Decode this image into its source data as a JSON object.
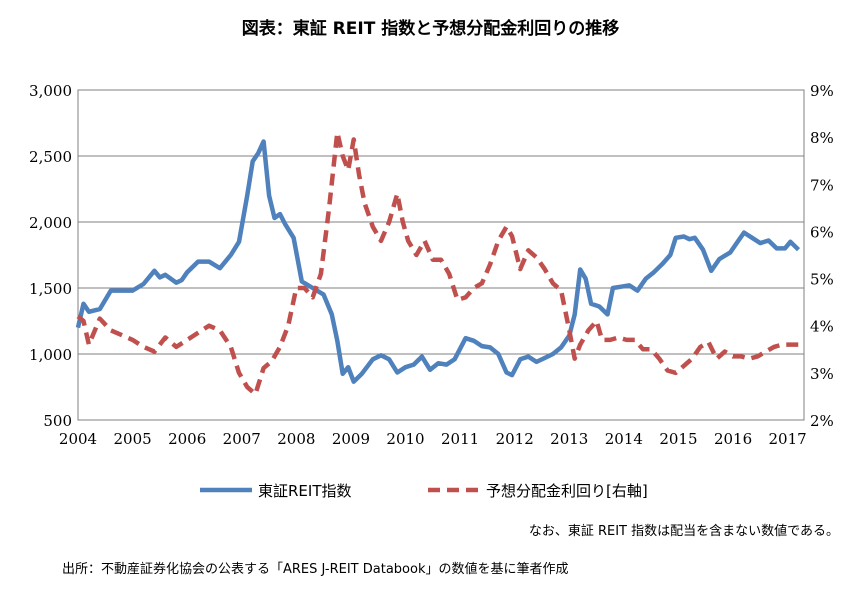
{
  "colors": {
    "index": "#4F81BD",
    "yield": "#C0504D",
    "grid": "#808080"
  },
  "notes": {
    "footnote": "なお、東証 REIT 指数は配当を含まない数値である。",
    "source": "出所：不動産証券化協会の公表する「ARES J-REIT Databook」の数値を基に筆者作成"
  },
  "chart_data": {
    "type": "line",
    "title": "図表：東証 REIT 指数と予想分配金利回りの推移",
    "x_ticks": [
      "2004",
      "2005",
      "2006",
      "2007",
      "2008",
      "2009",
      "2010",
      "2011",
      "2012",
      "2013",
      "2014",
      "2015",
      "2016",
      "2017"
    ],
    "y_left": {
      "min": 500,
      "max": 3000,
      "ticks": [
        "500",
        "1,000",
        "1,500",
        "2,000",
        "2,500",
        "3,000"
      ],
      "tick_values": [
        500,
        1000,
        1500,
        2000,
        2500,
        3000
      ]
    },
    "y_right": {
      "min": 2,
      "max": 9,
      "ticks": [
        "2%",
        "3%",
        "4%",
        "5%",
        "6%",
        "7%",
        "8%",
        "9%"
      ],
      "tick_values": [
        2,
        3,
        4,
        5,
        6,
        7,
        8,
        9
      ]
    },
    "grid": "horizontal",
    "legend_position": "bottom",
    "series": [
      {
        "name": "東証REIT指数",
        "axis": "left",
        "style": "solid",
        "x": [
          2004.0,
          2004.1,
          2004.2,
          2004.4,
          2004.6,
          2004.8,
          2005.0,
          2005.2,
          2005.4,
          2005.5,
          2005.6,
          2005.8,
          2005.9,
          2006.0,
          2006.2,
          2006.4,
          2006.6,
          2006.8,
          2006.95,
          2007.1,
          2007.2,
          2007.3,
          2007.4,
          2007.5,
          2007.6,
          2007.7,
          2007.8,
          2007.95,
          2008.1,
          2008.3,
          2008.5,
          2008.65,
          2008.75,
          2008.85,
          2008.95,
          2009.05,
          2009.2,
          2009.4,
          2009.55,
          2009.7,
          2009.85,
          2010.0,
          2010.15,
          2010.3,
          2010.45,
          2010.6,
          2010.75,
          2010.9,
          2011.1,
          2011.25,
          2011.4,
          2011.55,
          2011.7,
          2011.85,
          2011.95,
          2012.1,
          2012.25,
          2012.4,
          2012.55,
          2012.7,
          2012.85,
          2013.0,
          2013.1,
          2013.2,
          2013.3,
          2013.4,
          2013.55,
          2013.7,
          2013.8,
          2013.95,
          2014.1,
          2014.25,
          2014.4,
          2014.55,
          2014.7,
          2014.85,
          2014.95,
          2015.1,
          2015.2,
          2015.3,
          2015.45,
          2015.6,
          2015.75,
          2015.95,
          2016.05,
          2016.2,
          2016.35,
          2016.5,
          2016.65,
          2016.8,
          2016.95,
          2017.05,
          2017.2
        ],
        "values": [
          1200,
          1380,
          1320,
          1340,
          1480,
          1480,
          1480,
          1530,
          1630,
          1580,
          1600,
          1540,
          1560,
          1620,
          1700,
          1700,
          1650,
          1750,
          1850,
          2200,
          2460,
          2520,
          2610,
          2200,
          2030,
          2060,
          1980,
          1880,
          1550,
          1500,
          1450,
          1300,
          1100,
          850,
          900,
          790,
          850,
          960,
          990,
          960,
          860,
          900,
          920,
          980,
          880,
          930,
          920,
          960,
          1120,
          1100,
          1060,
          1050,
          1000,
          860,
          840,
          960,
          980,
          940,
          970,
          1000,
          1050,
          1140,
          1300,
          1640,
          1570,
          1380,
          1360,
          1300,
          1500,
          1510,
          1520,
          1480,
          1570,
          1620,
          1680,
          1750,
          1880,
          1890,
          1870,
          1880,
          1790,
          1630,
          1720,
          1770,
          1830,
          1920,
          1880,
          1840,
          1860,
          1800,
          1800,
          1850,
          1790
        ]
      },
      {
        "name": "予想分配金利回り[右軸]",
        "axis": "right",
        "style": "dashed",
        "x": [
          2004.0,
          2004.1,
          2004.2,
          2004.4,
          2004.6,
          2004.8,
          2005.0,
          2005.2,
          2005.4,
          2005.6,
          2005.8,
          2006.0,
          2006.2,
          2006.4,
          2006.6,
          2006.8,
          2006.95,
          2007.1,
          2007.25,
          2007.4,
          2007.55,
          2007.7,
          2007.85,
          2008.0,
          2008.15,
          2008.3,
          2008.45,
          2008.6,
          2008.75,
          2008.85,
          2008.95,
          2009.05,
          2009.15,
          2009.25,
          2009.4,
          2009.55,
          2009.7,
          2009.85,
          2009.95,
          2010.05,
          2010.2,
          2010.35,
          2010.5,
          2010.65,
          2010.8,
          2010.95,
          2011.1,
          2011.25,
          2011.4,
          2011.55,
          2011.7,
          2011.85,
          2011.95,
          2012.1,
          2012.25,
          2012.4,
          2012.55,
          2012.7,
          2012.85,
          2013.0,
          2013.1,
          2013.2,
          2013.35,
          2013.5,
          2013.6,
          2013.75,
          2013.9,
          2014.05,
          2014.2,
          2014.35,
          2014.5,
          2014.65,
          2014.8,
          2014.95,
          2015.1,
          2015.25,
          2015.4,
          2015.55,
          2015.7,
          2015.85,
          2016.0,
          2016.15,
          2016.3,
          2016.45,
          2016.6,
          2016.75,
          2016.9,
          2017.05,
          2017.2
        ],
        "values": [
          4.2,
          4.1,
          3.6,
          4.15,
          3.9,
          3.8,
          3.7,
          3.55,
          3.45,
          3.75,
          3.55,
          3.7,
          3.85,
          4.0,
          3.9,
          3.55,
          3.0,
          2.7,
          2.55,
          3.1,
          3.25,
          3.55,
          4.0,
          4.8,
          4.8,
          4.6,
          5.1,
          6.5,
          8.1,
          7.6,
          7.3,
          7.95,
          7.2,
          6.6,
          6.1,
          5.8,
          6.2,
          6.8,
          6.2,
          5.8,
          5.5,
          5.8,
          5.4,
          5.4,
          5.1,
          4.55,
          4.6,
          4.8,
          4.9,
          5.3,
          5.8,
          6.1,
          5.9,
          5.2,
          5.6,
          5.45,
          5.2,
          4.9,
          4.75,
          3.9,
          3.3,
          3.6,
          3.9,
          4.1,
          3.7,
          3.7,
          3.75,
          3.7,
          3.7,
          3.5,
          3.5,
          3.3,
          3.05,
          3.0,
          3.15,
          3.3,
          3.55,
          3.65,
          3.3,
          3.45,
          3.35,
          3.35,
          3.3,
          3.35,
          3.45,
          3.55,
          3.6,
          3.6,
          3.6
        ]
      }
    ]
  }
}
